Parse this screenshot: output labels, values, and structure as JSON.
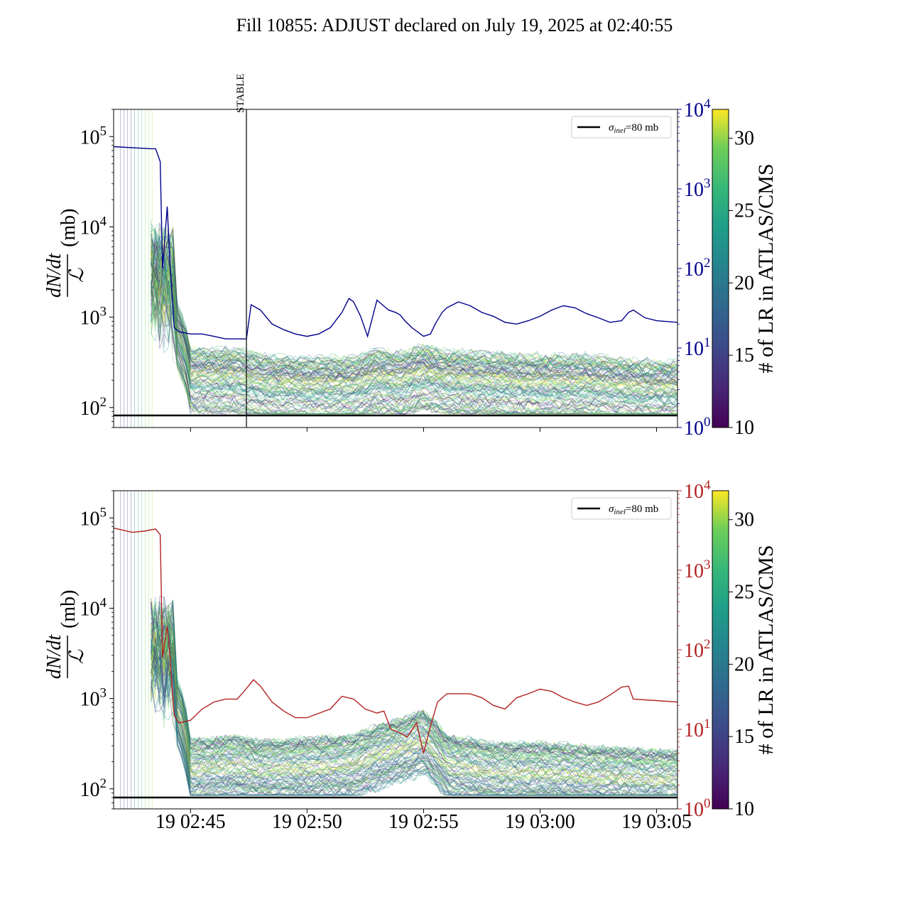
{
  "title": "Fill 10855: ADJUST declared on July 19, 2025 at 02:40:55",
  "colors": {
    "top_right_axis": "#00008b",
    "bottom_right_axis": "#b22222",
    "sigma_line": "#000000",
    "stable_line": "#000000"
  },
  "colormap": "viridis",
  "chart_data": [
    {
      "type": "line",
      "panel": "top",
      "y_scale": "log",
      "ylim": [
        60,
        200000
      ],
      "ylabel_numerator": "dN/dt",
      "ylabel_denominator": "ℒ",
      "ylabel_unit": "(mb)",
      "y_ticks": [
        "10^2",
        "10^3",
        "10^4",
        "10^5"
      ],
      "right_axis": {
        "scale": "log",
        "ylim": [
          1,
          10000
        ],
        "ticks": [
          "10^0",
          "10^1",
          "10^2",
          "10^3",
          "10^4"
        ],
        "color": "#00008b",
        "series": {
          "x_min": [
            41.7,
            43.3,
            43.5,
            43.7,
            43.8,
            44.0,
            44.1,
            44.3,
            44.5,
            45.0,
            45.5,
            46.0,
            46.5,
            47.0,
            47.4,
            47.6,
            48.0,
            48.5,
            49.0,
            49.5,
            50.0,
            50.5,
            51.0,
            51.5,
            51.8,
            52.0,
            52.3,
            52.6,
            53.0,
            53.5,
            53.8,
            54.0,
            54.2,
            54.5,
            55.0,
            55.3,
            55.5,
            55.8,
            56.0,
            56.5,
            57.0,
            57.5,
            58.0,
            58.5,
            59.0,
            59.5,
            60.0,
            60.5,
            61.0,
            61.5,
            62.0,
            62.5,
            63.0,
            63.5,
            63.8,
            64.0,
            64.5,
            65.0,
            65.9
          ],
          "y": [
            3400,
            3200,
            3200,
            2200,
            100,
            600,
            150,
            18,
            16,
            15,
            15,
            14,
            13,
            13,
            13,
            35,
            30,
            20,
            17,
            15,
            14,
            15,
            18,
            28,
            42,
            38,
            25,
            14,
            40,
            30,
            28,
            26,
            22,
            18,
            14,
            15,
            20,
            28,
            32,
            38,
            34,
            28,
            25,
            21,
            20,
            22,
            25,
            30,
            34,
            32,
            27,
            24,
            21,
            22,
            28,
            30,
            24,
            22,
            21
          ]
        }
      },
      "x_axis": {
        "unit": "minutes after 19 02:00",
        "xlim": [
          41.7,
          65.9
        ],
        "tick_labels": []
      },
      "bundle": {
        "lines": 800,
        "color_scale": "# of LR in ATLAS/CMS",
        "clim": [
          10,
          32
        ],
        "median_y_min": [
          44.2,
          45,
          47,
          48,
          50,
          52,
          53,
          54,
          55,
          56,
          58,
          60,
          62,
          64,
          65.9
        ],
        "median_y": [
          800,
          200,
          200,
          170,
          160,
          160,
          200,
          180,
          220,
          190,
          180,
          170,
          170,
          150,
          145
        ]
      },
      "hline": {
        "y": 80,
        "legend": "σinel=80 mb"
      },
      "legend": {
        "label_symbol": "σ",
        "label_subscript": "inel",
        "label_value": "=80 mb",
        "placement": "top-right"
      },
      "vline": {
        "x": 47.1,
        "label": "STABLE"
      }
    },
    {
      "type": "line",
      "panel": "bottom",
      "y_scale": "log",
      "ylim": [
        60,
        200000
      ],
      "ylabel_numerator": "dN/dt",
      "ylabel_denominator": "ℒ",
      "ylabel_unit": "(mb)",
      "y_ticks": [
        "10^2",
        "10^3",
        "10^4",
        "10^5"
      ],
      "right_axis": {
        "scale": "log",
        "ylim": [
          1,
          10000
        ],
        "ticks": [
          "10^0",
          "10^1",
          "10^2",
          "10^3",
          "10^4"
        ],
        "color": "#b22222",
        "series": {
          "x_min": [
            41.7,
            42.5,
            43.0,
            43.5,
            43.7,
            43.8,
            44.0,
            44.1,
            44.3,
            44.5,
            45.0,
            45.5,
            46.0,
            46.5,
            47.0,
            47.3,
            47.7,
            48.0,
            48.5,
            49.0,
            49.5,
            50.0,
            51.0,
            51.5,
            52.0,
            52.5,
            53.0,
            53.3,
            53.6,
            54.0,
            54.3,
            54.7,
            55.0,
            55.3,
            55.6,
            56.0,
            57.0,
            57.5,
            58.0,
            58.5,
            59.0,
            59.5,
            60.0,
            60.5,
            61.0,
            61.5,
            62.0,
            62.5,
            63.0,
            63.5,
            63.8,
            64.0,
            65.0,
            65.9
          ],
          "y": [
            3400,
            3000,
            3100,
            3300,
            2800,
            80,
            200,
            100,
            15,
            12,
            13,
            18,
            22,
            24,
            24,
            30,
            42,
            35,
            22,
            17,
            14,
            14,
            18,
            26,
            24,
            18,
            16,
            17,
            10,
            9,
            8,
            12,
            5,
            11,
            22,
            28,
            28,
            25,
            20,
            18,
            25,
            28,
            32,
            30,
            25,
            22,
            20,
            22,
            27,
            34,
            35,
            24,
            23,
            22
          ]
        }
      },
      "x_axis": {
        "unit": "minutes after 19 02:00",
        "xlim": [
          41.7,
          65.9
        ],
        "tick_values": [
          45,
          50,
          55,
          60,
          65
        ],
        "tick_labels": [
          "19 02:45",
          "19 02:50",
          "19 02:55",
          "19 03:00",
          "19 03:05"
        ]
      },
      "bundle": {
        "lines": 800,
        "color_scale": "# of LR in ATLAS/CMS",
        "clim": [
          10,
          32
        ],
        "median_y_min": [
          44.2,
          45,
          47,
          48,
          50,
          52,
          53,
          54,
          55,
          56,
          58,
          60,
          62,
          64,
          65.9
        ],
        "median_y": [
          900,
          150,
          170,
          150,
          160,
          170,
          220,
          260,
          320,
          170,
          140,
          140,
          130,
          120,
          115
        ]
      },
      "hline": {
        "y": 80,
        "legend": "σinel=80 mb"
      },
      "legend": {
        "label_symbol": "σ",
        "label_subscript": "inel",
        "label_value": "=80 mb",
        "placement": "top-right"
      }
    }
  ],
  "colorbar": {
    "label": "# of LR in ATLAS/CMS",
    "ticks": [
      "10",
      "15",
      "20",
      "25",
      "30"
    ],
    "range": [
      10,
      32
    ]
  }
}
